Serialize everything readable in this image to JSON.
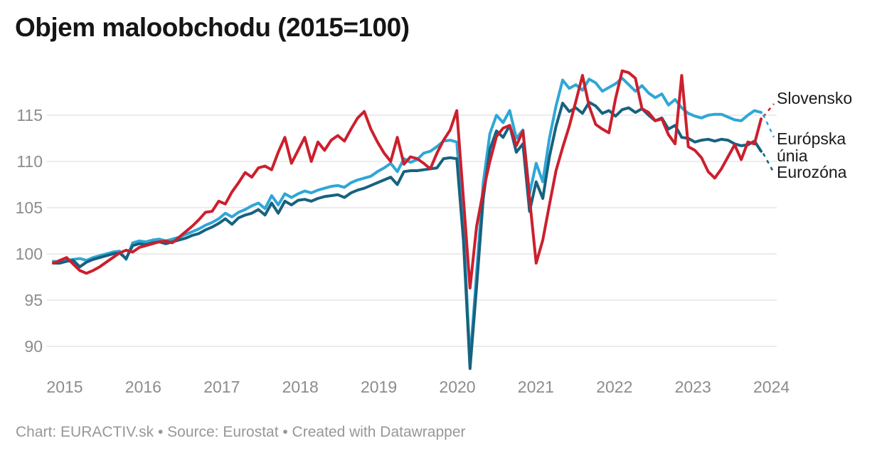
{
  "header": {
    "title": "Objem maloobchodu (2015=100)"
  },
  "footer": {
    "text": "Chart: EURACTIV.sk • Source: Eurostat • Created with Datawrapper"
  },
  "chart_data": {
    "type": "line",
    "title": "Objem maloobchodu (2015=100)",
    "x_unit": "month",
    "x_start": "2015-01",
    "x_end": "2023-12",
    "x_ticks": [
      "2015",
      "2016",
      "2017",
      "2018",
      "2019",
      "2020",
      "2021",
      "2022",
      "2023",
      "2024"
    ],
    "y_ticks": [
      90,
      95,
      100,
      105,
      110,
      115
    ],
    "ylim": [
      87,
      120
    ],
    "grid": true,
    "grid_color": "#e6e6e6",
    "tick_color": "#8c8c8c",
    "legend_position": "right-of-line-ends",
    "series": [
      {
        "name": "Slovensko",
        "color": "#cc1f2d",
        "values": [
          99.0,
          99.3,
          99.6,
          98.9,
          98.2,
          97.9,
          98.2,
          98.6,
          99.1,
          99.6,
          100.1,
          100.4,
          100.2,
          100.7,
          100.9,
          101.1,
          101.3,
          101.4,
          101.2,
          101.8,
          102.4,
          103.0,
          103.7,
          104.5,
          104.6,
          105.7,
          105.4,
          106.7,
          107.7,
          108.8,
          108.3,
          109.3,
          109.5,
          109.1,
          111.0,
          112.6,
          109.8,
          111.2,
          112.6,
          110.0,
          112.1,
          111.2,
          112.3,
          112.8,
          112.2,
          113.5,
          114.7,
          115.4,
          113.5,
          112.1,
          110.9,
          110.0,
          112.6,
          109.7,
          110.5,
          110.3,
          109.8,
          109.2,
          110.9,
          112.3,
          113.4,
          115.5,
          106.0,
          96.3,
          103.0,
          106.8,
          110.0,
          112.7,
          113.6,
          113.9,
          111.7,
          113.3,
          106.0,
          99.0,
          101.5,
          105.3,
          109.0,
          111.5,
          113.8,
          116.5,
          119.3,
          116.0,
          114.0,
          113.5,
          113.1,
          116.8,
          119.8,
          119.6,
          119.0,
          115.7,
          115.3,
          114.4,
          114.6,
          112.9,
          111.9,
          119.3,
          111.6,
          111.2,
          110.4,
          108.9,
          108.2,
          109.2,
          110.5,
          111.8,
          110.2,
          112.1,
          111.9,
          114.6
        ]
      },
      {
        "name": "Európska únia",
        "color": "#2ea7d6",
        "values": [
          99.2,
          99.1,
          99.3,
          99.4,
          99.5,
          99.3,
          99.6,
          99.8,
          100.0,
          100.2,
          100.3,
          99.4,
          101.2,
          101.4,
          101.3,
          101.5,
          101.6,
          101.4,
          101.6,
          101.8,
          102.1,
          102.4,
          102.7,
          103.1,
          103.4,
          103.8,
          104.4,
          104.0,
          104.5,
          104.8,
          105.2,
          105.5,
          104.9,
          106.3,
          105.3,
          106.5,
          106.1,
          106.5,
          106.8,
          106.6,
          106.9,
          107.1,
          107.3,
          107.4,
          107.2,
          107.7,
          108.0,
          108.2,
          108.4,
          108.9,
          109.3,
          109.8,
          108.9,
          110.3,
          109.9,
          110.2,
          110.9,
          111.1,
          111.6,
          112.2,
          112.3,
          112.1,
          103.0,
          88.4,
          98.0,
          107.7,
          113.0,
          115.0,
          114.2,
          115.5,
          112.5,
          113.4,
          106.5,
          109.8,
          107.8,
          112.5,
          116.0,
          118.8,
          117.9,
          118.3,
          117.7,
          118.9,
          118.5,
          117.6,
          118.0,
          118.4,
          119.0,
          118.3,
          117.6,
          118.2,
          117.4,
          116.9,
          117.3,
          116.1,
          116.7,
          115.8,
          115.2,
          114.9,
          114.7,
          115.0,
          115.1,
          115.1,
          114.8,
          114.5,
          114.4,
          115.0,
          115.5,
          115.3
        ]
      },
      {
        "name": "Eurozóna",
        "color": "#17627f",
        "values": [
          99.0,
          99.0,
          99.2,
          99.3,
          98.6,
          99.1,
          99.4,
          99.6,
          99.8,
          100.0,
          100.1,
          99.5,
          100.9,
          101.1,
          101.0,
          101.2,
          101.3,
          101.1,
          101.3,
          101.5,
          101.7,
          102.0,
          102.2,
          102.6,
          102.9,
          103.3,
          103.8,
          103.2,
          103.9,
          104.2,
          104.4,
          104.8,
          104.2,
          105.5,
          104.4,
          105.7,
          105.3,
          105.8,
          105.9,
          105.7,
          106.0,
          106.2,
          106.3,
          106.4,
          106.1,
          106.6,
          106.9,
          107.1,
          107.4,
          107.7,
          108.0,
          108.3,
          107.5,
          108.9,
          109.0,
          109.0,
          109.1,
          109.2,
          109.3,
          110.3,
          110.4,
          110.3,
          101.5,
          87.6,
          96.5,
          106.0,
          111.3,
          113.3,
          112.6,
          113.9,
          111.0,
          111.9,
          104.6,
          107.8,
          106.0,
          110.5,
          113.8,
          116.3,
          115.4,
          115.8,
          115.2,
          116.4,
          116.0,
          115.2,
          115.5,
          114.9,
          115.6,
          115.8,
          115.3,
          115.7,
          115.0,
          114.4,
          114.7,
          113.5,
          113.9,
          112.6,
          112.5,
          112.1,
          112.3,
          112.4,
          112.2,
          112.4,
          112.3,
          111.9,
          111.7,
          111.8,
          112.2,
          111.1
        ]
      }
    ]
  }
}
